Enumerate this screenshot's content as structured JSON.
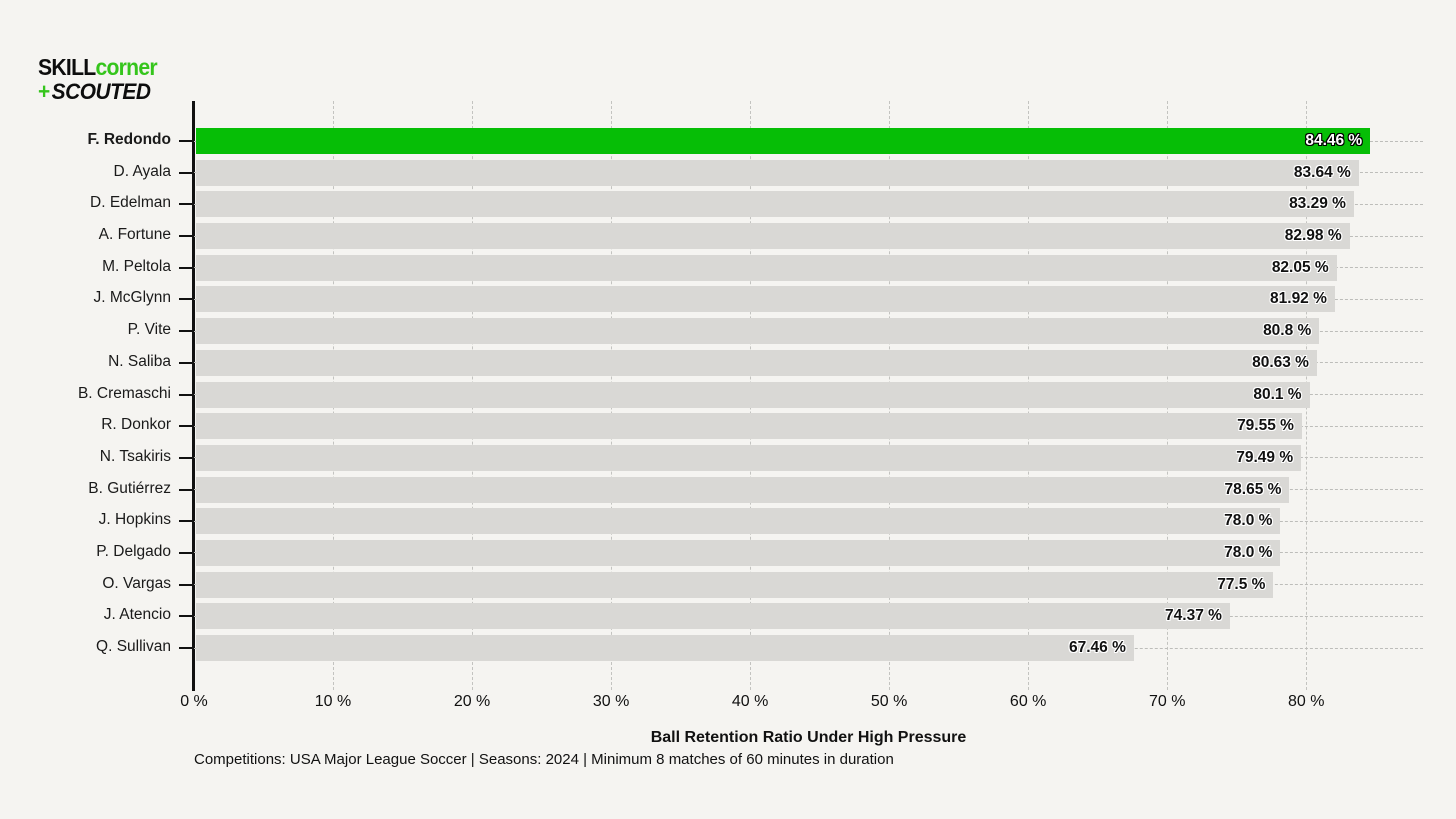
{
  "logo": {
    "line1_black": "SKILL",
    "line1_green": "corner",
    "line2_green": "+",
    "line2_black": "SCOUTED"
  },
  "chart_data": {
    "type": "bar",
    "orientation": "horizontal",
    "title": "",
    "xlabel": "Ball Retention Ratio Under High Pressure",
    "categories": [
      "F. Redondo",
      "D. Ayala",
      "D. Edelman",
      "A. Fortune",
      "M. Peltola",
      "J. McGlynn",
      "P. Vite",
      "N. Saliba",
      "B. Cremaschi",
      "R. Donkor",
      "N. Tsakiris",
      "B. Gutiérrez",
      "J. Hopkins",
      "P. Delgado",
      "O. Vargas",
      "J. Atencio",
      "Q. Sullivan"
    ],
    "values": [
      84.46,
      83.64,
      83.29,
      82.98,
      82.05,
      81.92,
      80.8,
      80.63,
      80.1,
      79.55,
      79.49,
      78.65,
      78.0,
      78.0,
      77.5,
      74.37,
      67.46
    ],
    "value_labels": [
      "84.46 %",
      "83.64 %",
      "83.29 %",
      "82.98 %",
      "82.05 %",
      "81.92 %",
      "80.8 %",
      "80.63 %",
      "80.1 %",
      "79.55 %",
      "79.49 %",
      "78.65 %",
      "78.0 %",
      "78.0 %",
      "77.5 %",
      "74.37 %",
      "67.46 %"
    ],
    "highlight_index": 0,
    "x_tick_values": [
      0,
      10,
      20,
      30,
      40,
      50,
      60,
      70,
      80
    ],
    "x_tick_labels": [
      "0 %",
      "10 %",
      "20 %",
      "30 %",
      "40 %",
      "50 %",
      "60 %",
      "70 %",
      "80 %"
    ],
    "xlim": [
      0,
      88.4
    ],
    "grid": "vertical dashed at each 10%, horizontal dashed per row",
    "legend": "none",
    "colors": {
      "background": "#f5f4f1",
      "bar": "#d9d8d5",
      "highlight": "#06be06",
      "logo_green": "#35c51c",
      "text": "#111111"
    }
  },
  "footnote": "Competitions: USA Major League Soccer | Seasons: 2024 | Minimum 8 matches of 60 minutes in duration"
}
